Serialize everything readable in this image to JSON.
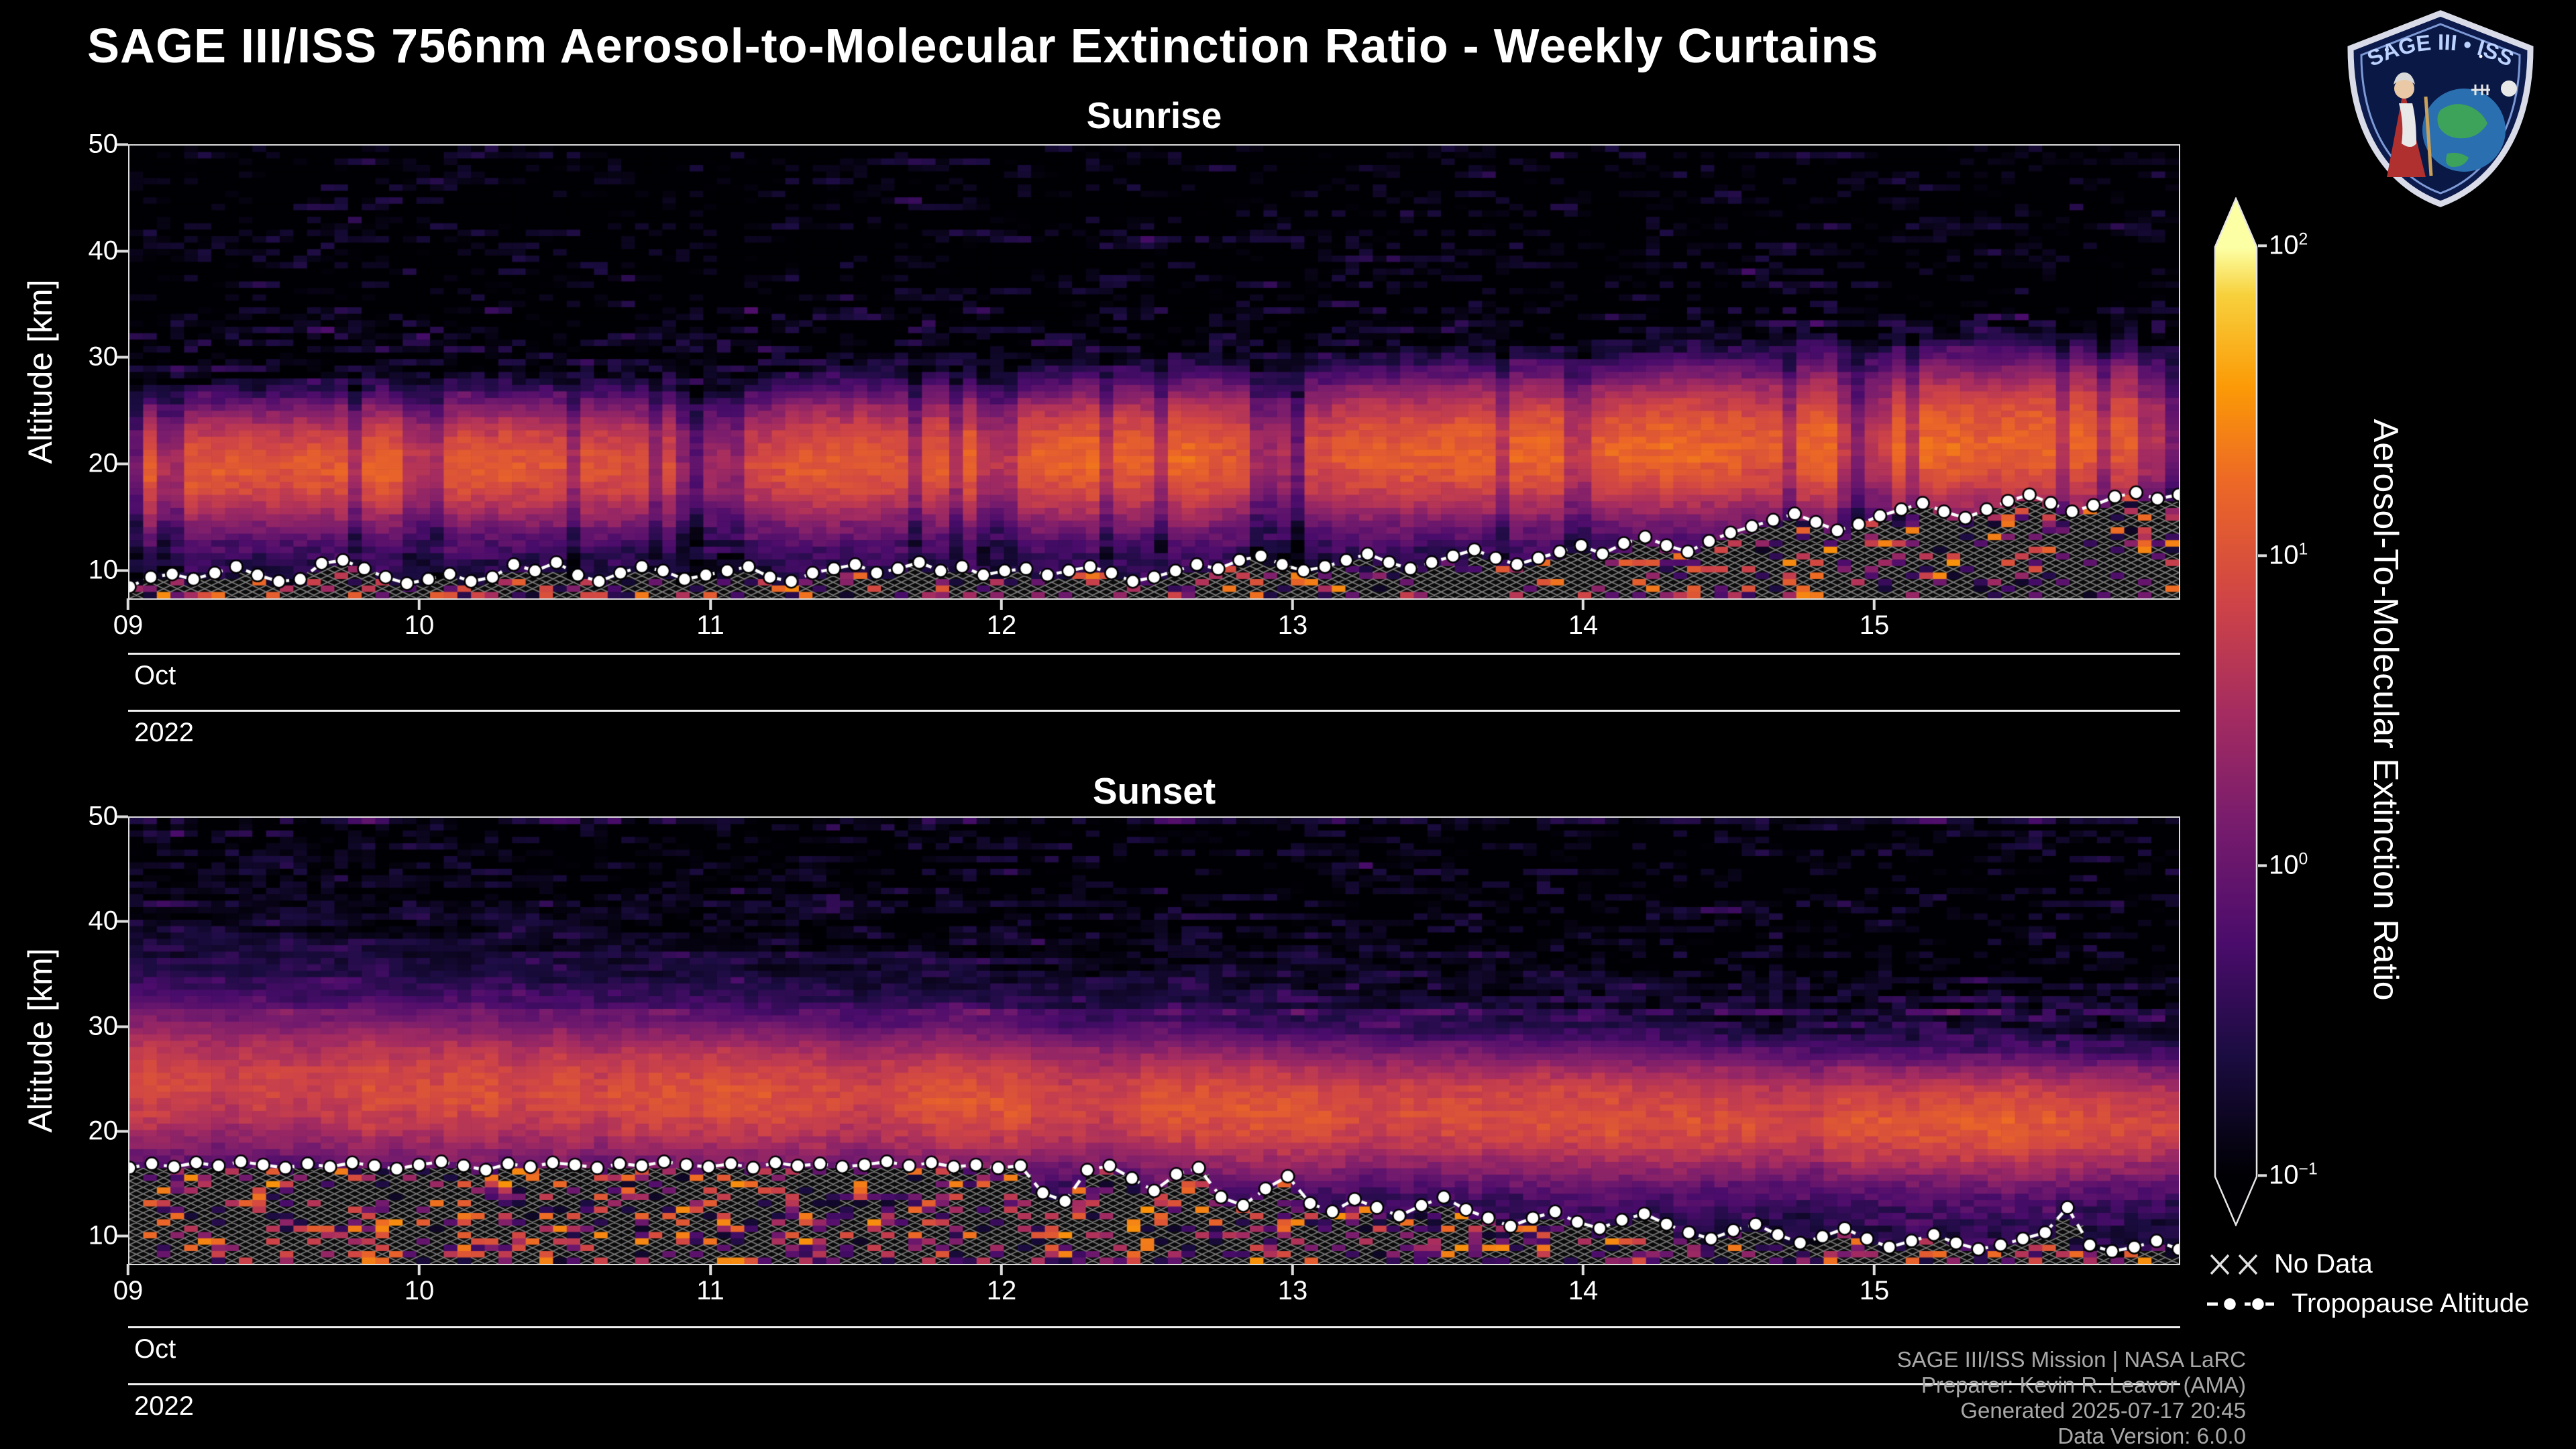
{
  "page_title": "SAGE III/ISS 756nm Aerosol-to-Molecular Extinction Ratio - Weekly Curtains",
  "logo": {
    "text": "SAGE III • ISS"
  },
  "footer": {
    "lines": [
      "SAGE III/ISS Mission | NASA LaRC",
      "Preparer: Kevin R. Leavor (AMA)",
      "Generated 2025-07-17 20:45",
      "Data Version: 6.0.0"
    ]
  },
  "chart_data": {
    "type": "heatmap",
    "title": "SAGE III/ISS 756nm Aerosol-to-Molecular Extinction Ratio - Weekly Curtains",
    "x": {
      "month": "Oct",
      "year": "2022",
      "tick_labels": [
        "09",
        "10",
        "11",
        "12",
        "13",
        "14",
        "15"
      ],
      "tick_days": [
        9,
        10,
        11,
        12,
        13,
        14,
        15
      ],
      "range_days": [
        9,
        16.05
      ]
    },
    "y": {
      "label": "Altitude [km]",
      "min": 7.2,
      "max": 50,
      "tick_labels": [
        "10",
        "20",
        "30",
        "40",
        "50"
      ],
      "tick_values": [
        10,
        20,
        30,
        40,
        50
      ]
    },
    "color_scale": {
      "label": "Aerosol-To-Molecular Extinction Ratio",
      "scale": "log",
      "min": 0.1,
      "max": 100,
      "ticks": [
        {
          "b": "10",
          "e": "2",
          "value": 100
        },
        {
          "b": "10",
          "e": "1",
          "value": 10
        },
        {
          "b": "10",
          "e": "0",
          "value": 1
        },
        {
          "b": "10",
          "e": "−1",
          "value": 0.1
        }
      ],
      "colormap": "inferno",
      "colormap_stops": [
        [
          0,
          "#000004"
        ],
        [
          0.13,
          "#1b0c41"
        ],
        [
          0.25,
          "#4a0c6b"
        ],
        [
          0.38,
          "#781c6d"
        ],
        [
          0.5,
          "#a52c60"
        ],
        [
          0.62,
          "#cf4446"
        ],
        [
          0.75,
          "#ed6925"
        ],
        [
          0.85,
          "#fb9a06"
        ],
        [
          0.95,
          "#f7d13d"
        ],
        [
          1,
          "#fcffa4"
        ]
      ]
    },
    "legend": [
      {
        "symbol": "x-hatch",
        "label": "No Data"
      },
      {
        "symbol": "dashed-line-with-dots",
        "label": "Tropopause Altitude"
      }
    ],
    "panels": [
      {
        "title": "Sunrise",
        "band_center_km": [
          19.5,
          20,
          20,
          20.5,
          21,
          21.5,
          22,
          22.5
        ],
        "band_width_km": [
          2.6,
          2.6,
          2.8,
          2.8,
          3,
          3,
          3.2,
          3.2
        ],
        "band_amplitude": [
          14,
          15,
          13,
          15,
          14,
          16,
          15,
          16
        ],
        "texture": {
          "seed": 90121,
          "gappy": true,
          "upper_haze": false,
          "nodata_frac": 0.7
        },
        "tropopause_km": [
          8.3,
          9.2,
          9.5,
          9.0,
          9.6,
          10.2,
          9.4,
          8.8,
          9.0,
          10.5,
          10.8,
          10.0,
          9.2,
          8.6,
          9.0,
          9.5,
          8.8,
          9.2,
          10.4,
          9.8,
          10.6,
          9.4,
          8.8,
          9.6,
          10.2,
          9.8,
          9.0,
          9.4,
          9.8,
          10.2,
          9.2,
          8.8,
          9.6,
          10.0,
          10.4,
          9.6,
          10.0,
          10.6,
          9.8,
          10.2,
          9.4,
          9.8,
          10.0,
          9.4,
          9.8,
          10.2,
          9.6,
          8.8,
          9.2,
          9.8,
          10.4,
          10.0,
          10.8,
          11.2,
          10.4,
          9.8,
          10.2,
          10.8,
          11.4,
          10.6,
          10.0,
          10.6,
          11.2,
          11.8,
          11.0,
          10.4,
          11.0,
          11.6,
          12.2,
          11.4,
          12.4,
          13.0,
          12.2,
          11.6,
          12.6,
          13.4,
          14.0,
          14.6,
          15.2,
          14.4,
          13.6,
          14.2,
          15.0,
          15.6,
          16.2,
          15.4,
          14.8,
          15.6,
          16.4,
          17.0,
          16.2,
          15.4,
          16.0,
          16.8,
          17.2,
          16.6,
          17.0
        ]
      },
      {
        "title": "Sunset",
        "band_center_km": [
          24.5,
          24,
          23.5,
          23,
          22,
          21.5,
          21,
          21
        ],
        "band_width_km": [
          3.2,
          3.2,
          3,
          3,
          2.8,
          2.8,
          2.6,
          2.6
        ],
        "band_amplitude": [
          10,
          11,
          11,
          10,
          11,
          10,
          11,
          10
        ],
        "texture": {
          "seed": 40917,
          "gappy": false,
          "upper_haze": true,
          "nodata_frac": 0.62
        },
        "tropopause_km": [
          16.4,
          16.8,
          16.5,
          16.9,
          16.6,
          17.0,
          16.7,
          16.4,
          16.8,
          16.5,
          16.9,
          16.6,
          16.3,
          16.7,
          17.0,
          16.6,
          16.2,
          16.8,
          16.5,
          16.9,
          16.7,
          16.4,
          16.8,
          16.6,
          17.0,
          16.7,
          16.5,
          16.8,
          16.4,
          16.9,
          16.6,
          16.8,
          16.5,
          16.7,
          17.0,
          16.6,
          16.9,
          16.5,
          16.7,
          16.4,
          16.6,
          14.0,
          13.2,
          16.2,
          16.6,
          15.4,
          14.2,
          15.8,
          16.4,
          13.6,
          12.8,
          14.4,
          15.6,
          13.0,
          12.2,
          13.4,
          12.6,
          11.8,
          12.8,
          13.6,
          12.4,
          11.6,
          10.8,
          11.6,
          12.2,
          11.2,
          10.6,
          11.4,
          12.0,
          11.0,
          10.2,
          9.6,
          10.4,
          11.0,
          10.0,
          9.2,
          9.8,
          10.6,
          9.6,
          8.8,
          9.4,
          10.0,
          9.2,
          8.6,
          9.0,
          9.6,
          10.2,
          12.6,
          9.0,
          8.4,
          8.8,
          9.4,
          8.6
        ]
      }
    ]
  }
}
